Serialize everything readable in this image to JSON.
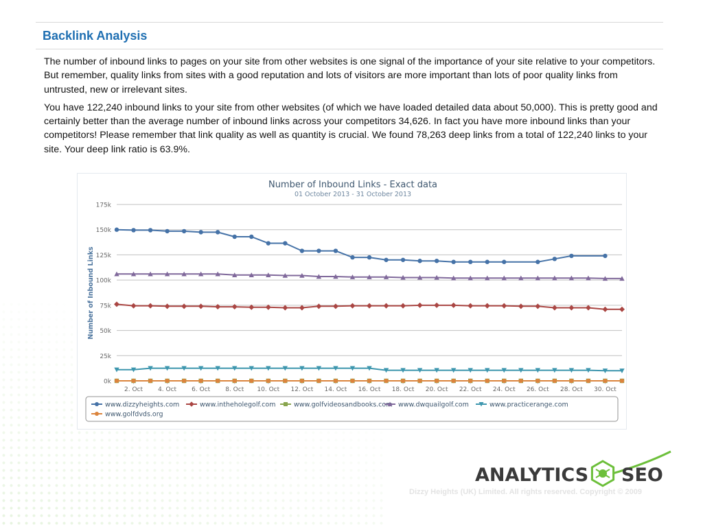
{
  "page": {
    "title": "Backlink Analysis",
    "paragraphs": [
      "The number of inbound links to pages on your site from other websites is one signal of the importance of your site relative to your competitors. But remember, quality links from sites with a good reputation and lots of visitors are more important than lots of poor quality links from untrusted, new or irrelevant sites.",
      "You have 122,240 inbound links to your site from other websites (of which we have loaded detailed data about 50,000). This is pretty good and certainly better than the average number of inbound links across your competitors 34,626. In fact you have more inbound links than your competitors! Please remember that link quality as well as quantity is crucial. We found 78,263 deep links from a total of 122,240 links to your site. Your deep link ratio is 63.9%."
    ],
    "title_color": "#1f6fb2"
  },
  "logo": {
    "word1": "ANALYTICS",
    "word2": "SEO",
    "icon": "hexagon-bug-icon",
    "accent": "#6cbf3a"
  },
  "footer": {
    "copyright": "Dizzy Heights (UK) Limited. All rights reserved. Copyright © 2009"
  },
  "chart_data": {
    "type": "line",
    "title": "Number of Inbound Links - Exact data",
    "subtitle": "01 October 2013 - 31 October 2013",
    "ylabel": "Number of Inbound Links",
    "xlabel": "",
    "ylim": [
      0,
      175000
    ],
    "yticks": [
      0,
      25000,
      50000,
      75000,
      100000,
      125000,
      150000,
      175000
    ],
    "ytick_labels": [
      "0k",
      "25k",
      "50k",
      "75k",
      "100k",
      "125k",
      "150k",
      "175k"
    ],
    "xlim": [
      1,
      31
    ],
    "xtick_values": [
      2,
      4,
      6,
      8,
      10,
      12,
      14,
      16,
      18,
      20,
      22,
      24,
      26,
      28,
      30
    ],
    "xtick_labels": [
      "2. Oct",
      "4. Oct",
      "6. Oct",
      "8. Oct",
      "10. Oct",
      "12. Oct",
      "14. Oct",
      "16. Oct",
      "18. Oct",
      "20. Oct",
      "22. Oct",
      "24. Oct",
      "26. Oct",
      "28. Oct",
      "30. Oct"
    ],
    "grid": "horizontal",
    "legend_position": "bottom",
    "series": [
      {
        "name": "www.dizzyheights.com",
        "color": "#4572a7",
        "marker": "circle",
        "x": [
          1,
          2,
          3,
          4,
          5,
          6,
          7,
          8,
          9,
          10,
          11,
          12,
          13,
          14,
          15,
          16,
          17,
          18,
          19,
          20,
          21,
          22,
          23,
          24,
          26,
          27,
          28,
          30
        ],
        "values": [
          150000,
          149500,
          149500,
          148500,
          148500,
          147500,
          147500,
          143000,
          143000,
          136500,
          136500,
          129000,
          129000,
          129000,
          122500,
          122500,
          120000,
          120000,
          119000,
          119000,
          118000,
          118000,
          118000,
          118000,
          118000,
          121000,
          124000,
          124000
        ]
      },
      {
        "name": "www.intheholegolf.com",
        "color": "#aa4643",
        "marker": "diamond",
        "x": [
          1,
          2,
          3,
          4,
          5,
          6,
          7,
          8,
          9,
          10,
          11,
          12,
          13,
          14,
          15,
          16,
          17,
          18,
          19,
          20,
          21,
          22,
          23,
          24,
          25,
          26,
          27,
          28,
          29,
          30,
          31
        ],
        "values": [
          76000,
          74500,
          74500,
          74000,
          74000,
          74000,
          73500,
          73500,
          73000,
          73000,
          72500,
          72500,
          74000,
          74000,
          74500,
          74500,
          74500,
          74500,
          75000,
          75000,
          75000,
          74500,
          74500,
          74500,
          74000,
          74000,
          72500,
          72500,
          72500,
          71000,
          71000
        ]
      },
      {
        "name": "www.golfvideosandbooks.com",
        "color": "#89a54e",
        "marker": "square",
        "x": [
          1,
          2,
          3,
          4,
          5,
          6,
          7,
          8,
          9,
          10,
          11,
          12,
          13,
          14,
          15,
          16,
          17,
          18,
          19,
          20,
          21,
          22,
          23,
          24,
          25,
          26,
          27,
          28,
          29,
          30,
          31
        ],
        "values": [
          0,
          0,
          0,
          0,
          0,
          0,
          0,
          0,
          0,
          0,
          0,
          0,
          0,
          0,
          0,
          0,
          0,
          0,
          0,
          0,
          0,
          0,
          0,
          0,
          0,
          0,
          0,
          0,
          0,
          0,
          0
        ]
      },
      {
        "name": "www.dwquailgolf.com",
        "color": "#80699b",
        "marker": "triangle",
        "x": [
          1,
          2,
          3,
          4,
          5,
          6,
          7,
          8,
          9,
          10,
          11,
          12,
          13,
          14,
          15,
          16,
          17,
          18,
          19,
          20,
          21,
          22,
          23,
          24,
          25,
          26,
          27,
          28,
          29,
          30,
          31
        ],
        "values": [
          106000,
          106000,
          106000,
          106000,
          106000,
          106000,
          106000,
          105000,
          105000,
          105000,
          104500,
          104500,
          103500,
          103500,
          103000,
          103000,
          103000,
          102500,
          102500,
          102500,
          102000,
          102000,
          102000,
          102000,
          102000,
          102000,
          102000,
          102000,
          102000,
          101500,
          101500
        ]
      },
      {
        "name": "www.practicerange.com",
        "color": "#3d96ae",
        "marker": "triangle-down",
        "x": [
          1,
          2,
          3,
          4,
          5,
          6,
          7,
          8,
          9,
          10,
          11,
          12,
          13,
          14,
          15,
          16,
          17,
          18,
          19,
          20,
          21,
          22,
          23,
          24,
          25,
          26,
          27,
          28,
          29,
          30,
          31
        ],
        "values": [
          11000,
          11000,
          12500,
          12500,
          12500,
          12500,
          12500,
          12500,
          12500,
          12500,
          12500,
          12500,
          12500,
          12500,
          12500,
          12500,
          10500,
          10500,
          10500,
          10500,
          10500,
          10500,
          10500,
          10500,
          10500,
          10500,
          10500,
          10500,
          10500,
          10000,
          10000
        ]
      },
      {
        "name": "www.golfdvds.org",
        "color": "#db843d",
        "marker": "circle",
        "x": [
          1,
          2,
          3,
          4,
          5,
          6,
          7,
          8,
          9,
          10,
          11,
          12,
          13,
          14,
          15,
          16,
          17,
          18,
          19,
          20,
          21,
          22,
          23,
          24,
          25,
          26,
          27,
          28,
          29,
          30,
          31
        ],
        "values": [
          0,
          0,
          0,
          0,
          0,
          0,
          0,
          0,
          0,
          0,
          0,
          0,
          0,
          0,
          0,
          0,
          0,
          0,
          0,
          0,
          0,
          0,
          0,
          0,
          0,
          0,
          0,
          0,
          0,
          0,
          0
        ]
      }
    ]
  }
}
